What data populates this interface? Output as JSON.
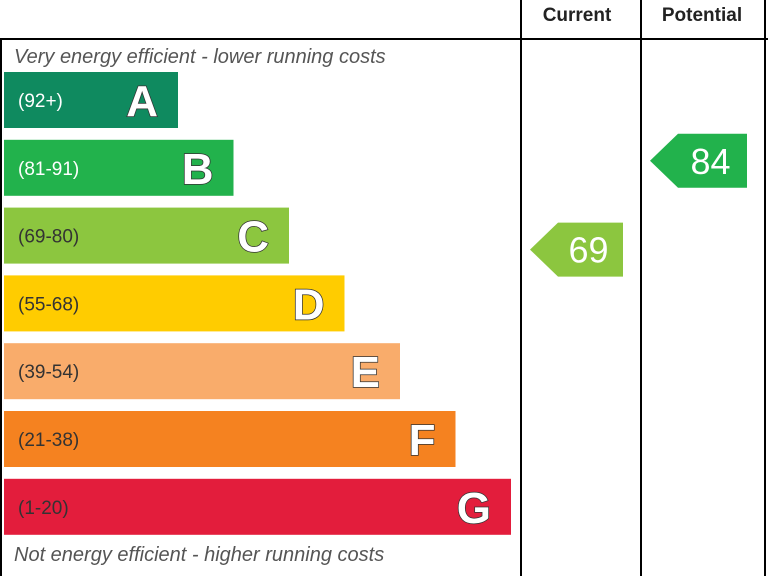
{
  "chart_data": {
    "type": "bar",
    "columns": {
      "current": "Current",
      "potential": "Potential"
    },
    "top_note": "Very energy efficient - lower running costs",
    "bottom_note": "Not energy efficient - higher running costs",
    "bands": [
      {
        "letter": "A",
        "range": "(92+)",
        "color": "#0f8a5f",
        "text_color": "#ffffff"
      },
      {
        "letter": "B",
        "range": "(81-91)",
        "color": "#22b24c",
        "text_color": "#ffffff"
      },
      {
        "letter": "C",
        "range": "(69-80)",
        "color": "#8cc63f",
        "text_color": "#333333"
      },
      {
        "letter": "D",
        "range": "(55-68)",
        "color": "#ffcc00",
        "text_color": "#333333"
      },
      {
        "letter": "E",
        "range": "(39-54)",
        "color": "#f9ac6b",
        "text_color": "#333333"
      },
      {
        "letter": "F",
        "range": "(21-38)",
        "color": "#f58220",
        "text_color": "#333333"
      },
      {
        "letter": "G",
        "range": "(1-20)",
        "color": "#e31d3c",
        "text_color": "#333333"
      }
    ],
    "current": {
      "value": 69,
      "band": "C",
      "color": "#8cc63f"
    },
    "potential": {
      "value": 84,
      "band": "B",
      "color": "#22b24c"
    }
  }
}
